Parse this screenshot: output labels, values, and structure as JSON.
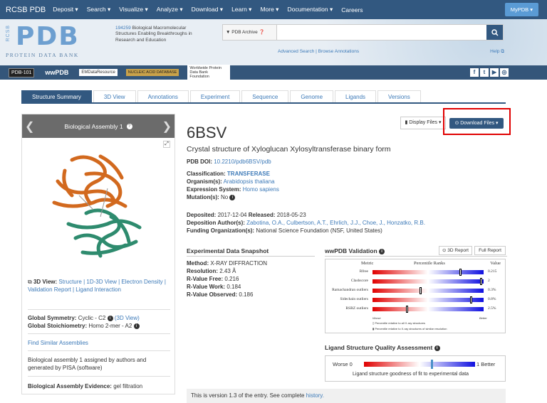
{
  "topnav": {
    "brand": "RCSB PDB",
    "items": [
      "Deposit ▾",
      "Search ▾",
      "Visualize ▾",
      "Analyze ▾",
      "Download ▾",
      "Learn ▾",
      "More ▾",
      "Documentation ▾",
      "Careers"
    ],
    "mypdb": "MyPDB ▾"
  },
  "header": {
    "logo_rcsb": "RCSB",
    "logo_pdb": "PDB",
    "logo_sub": "PROTEIN DATA BANK",
    "count": "194259",
    "tagline": "Biological Macromolecular Structures Enabling Breakthroughs in Research and Education",
    "search_scope": "▼ PDB Archive  ❓",
    "search_placeholder": "",
    "advanced": "Advanced Search | Browse Annotations",
    "help": "Help ⧉"
  },
  "partners": [
    "PDB-101",
    "wwPDB",
    "EMDataResource",
    "NUCLEIC ACID DATABASE",
    "Worldwide Protein Data Bank Foundation"
  ],
  "social": [
    "f",
    "t",
    "▶",
    "◎"
  ],
  "tabs": [
    "Structure Summary",
    "3D View",
    "Annotations",
    "Experiment",
    "Sequence",
    "Genome",
    "Ligands",
    "Versions"
  ],
  "left": {
    "assembly_title": "Biological Assembly 1",
    "view_label": "3D View:",
    "view_links": "Structure | 1D-3D View | Electron Density | Validation Report | Ligand Interaction",
    "symmetry_label": "Global Symmetry:",
    "symmetry_value": "Cyclic - C2",
    "symmetry_link": "(3D View)",
    "stoich_label": "Global Stoichiometry:",
    "stoich_value": "Homo 2-mer - A2",
    "similar": "Find Similar Assemblies",
    "assigned": "Biological assembly 1 assigned by authors and generated by PISA (software)",
    "evidence_label": "Biological Assembly Evidence:",
    "evidence_value": "gel filtration"
  },
  "entry": {
    "id": "6BSV",
    "title": "Crystal structure of Xyloglucan Xylosyltransferase binary form",
    "doi_label": "PDB DOI:",
    "doi": "10.2210/pdb6BSV/pdb",
    "classification_label": "Classification:",
    "classification": "TRANSFERASE",
    "organism_label": "Organism(s):",
    "organism": "Arabidopsis thaliana",
    "expression_label": "Expression System:",
    "expression": "Homo sapiens",
    "mutation_label": "Mutation(s):",
    "mutation": "No",
    "deposited_label": "Deposited:",
    "deposited": "2017-12-04",
    "released_label": "Released:",
    "released": "2018-05-23",
    "authors_label": "Deposition Author(s):",
    "authors": "Zabotina, O.A., Culbertson, A.T., Ehrlich, J.J., Choe, J., Honzatko, R.B.",
    "funding_label": "Funding Organization(s):",
    "funding": "National Science Foundation (NSF, United States)"
  },
  "buttons": {
    "display_files": "▮ Display Files ▾",
    "download_files": "⊙ Download Files ▾"
  },
  "snapshot": {
    "heading": "Experimental Data Snapshot",
    "method_label": "Method:",
    "method": "X-RAY DIFFRACTION",
    "resolution_label": "Resolution:",
    "resolution": "2.43 Å",
    "rfree_label": "R-Value Free:",
    "rfree": "0.216",
    "rwork_label": "R-Value Work:",
    "rwork": "0.184",
    "robs_label": "R-Value Observed:",
    "robs": "0.186"
  },
  "validation": {
    "heading": "wwPDB Validation",
    "btn_3d": "⊙ 3D Report",
    "btn_full": "Full Report",
    "col_metric": "Metric",
    "col_rank": "Percentile Ranks",
    "col_value": "Value",
    "rows": [
      {
        "metric": "Rfree",
        "value": "0.215",
        "pct": 0.78
      },
      {
        "metric": "Clashscore",
        "value": "2",
        "pct": 0.97
      },
      {
        "metric": "Ramachandran outliers",
        "value": "0.3%",
        "pct": 0.42
      },
      {
        "metric": "Sidechain outliers",
        "value": "0.8%",
        "pct": 0.88
      },
      {
        "metric": "RSRZ outliers",
        "value": "2.5%",
        "pct": 0.3
      }
    ],
    "worse": "Worse",
    "better": "Better",
    "legend1": "Percentile relative to all X-ray structures",
    "legend2": "Percentile relative to X-ray structures of similar resolution"
  },
  "ligand": {
    "heading": "Ligand Structure Quality Assessment",
    "worse": "Worse 0",
    "better": "1 Better",
    "caption": "Ligand structure goodness of fit to experimental data",
    "marker": 0.6
  },
  "version": {
    "text": "This is version 1.3 of the entry. See complete",
    "link": "history."
  },
  "colors": {
    "navy": "#325880",
    "link": "#3d7ab8",
    "highlight": "#e00000",
    "chain_a": "#d2691e",
    "chain_b": "#2e8b6e"
  }
}
